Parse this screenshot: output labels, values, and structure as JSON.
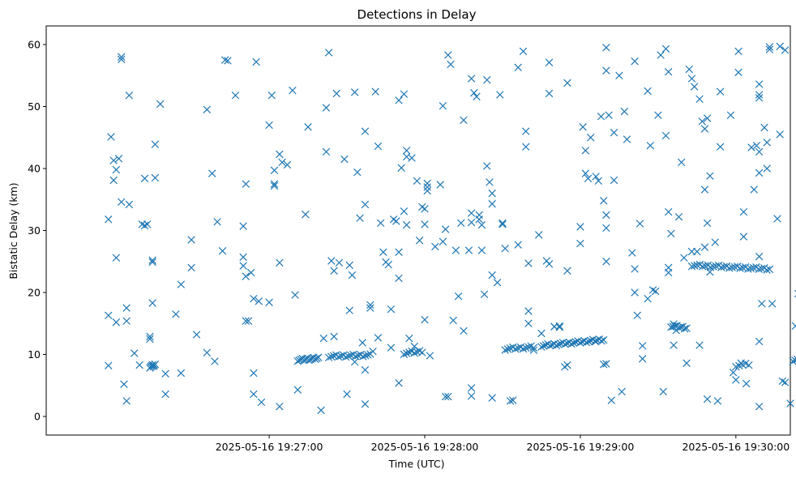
{
  "chart_data": {
    "type": "scatter",
    "title": "Detections in Delay",
    "xlabel": "Time (UTC)",
    "ylabel": "Bistatic Delay (km)",
    "x_unit": "seconds since 2025-05-16 19:26:00 UTC",
    "xlim": [
      -26,
      261
    ],
    "ylim": [
      -3,
      63
    ],
    "x_ticks": [
      {
        "value": 60,
        "label": "2025-05-16 19:27:00"
      },
      {
        "value": 120,
        "label": "2025-05-16 19:28:00"
      },
      {
        "value": 180,
        "label": "2025-05-16 19:29:00"
      },
      {
        "value": 240,
        "label": "2025-05-16 19:30:00"
      },
      {
        "value": 300,
        "label": "2025-05-16 19:31:00"
      }
    ],
    "y_ticks": [
      {
        "value": 0,
        "label": "0"
      },
      {
        "value": 10,
        "label": "10"
      },
      {
        "value": 20,
        "label": "20"
      },
      {
        "value": 30,
        "label": "30"
      },
      {
        "value": 40,
        "label": "40"
      },
      {
        "value": 50,
        "label": "50"
      },
      {
        "value": 60,
        "label": "60"
      }
    ],
    "marker": "x",
    "color": "#1f77b4",
    "tracks": [
      {
        "name": "track-1",
        "x_start": 14,
        "x_end": 16,
        "y_start": 8.0,
        "y_end": 8.3,
        "count": 7
      },
      {
        "name": "track-2",
        "x_start": 71,
        "x_end": 79,
        "y_start": 9.1,
        "y_end": 9.4,
        "count": 14
      },
      {
        "name": "track-3",
        "x_start": 83,
        "x_end": 99,
        "y_start": 9.7,
        "y_end": 9.9,
        "count": 18
      },
      {
        "name": "track-4",
        "x_start": 112,
        "x_end": 119,
        "y_start": 10.2,
        "y_end": 10.5,
        "count": 8
      },
      {
        "name": "track-5",
        "x_start": 151,
        "x_end": 162,
        "y_start": 10.9,
        "y_end": 11.2,
        "count": 12
      },
      {
        "name": "track-6",
        "x_start": 165,
        "x_end": 189,
        "y_start": 11.4,
        "y_end": 12.4,
        "count": 30
      },
      {
        "name": "track-7",
        "x_start": 215,
        "x_end": 221,
        "y_start": 14.6,
        "y_end": 14.3,
        "count": 9
      },
      {
        "name": "track-8",
        "x_start": 223,
        "x_end": 253,
        "y_start": 24.4,
        "y_end": 23.8,
        "count": 30
      },
      {
        "name": "track-9",
        "x_start": 240,
        "x_end": 245,
        "y_start": 8.2,
        "y_end": 8.4,
        "count": 5
      },
      {
        "name": "track-10",
        "x_start": 262,
        "x_end": 312,
        "y_start": 9.1,
        "y_end": 10.4,
        "count": 60
      },
      {
        "name": "track-11",
        "x_start": 315,
        "x_end": 325,
        "y_start": 10.4,
        "y_end": 10.9,
        "count": 12
      },
      {
        "name": "track-12",
        "x_start": 326,
        "x_end": 374,
        "y_start": 11.0,
        "y_end": 12.1,
        "count": 60
      }
    ],
    "points": [
      [
        -2,
        16.3
      ],
      [
        -2,
        31.8
      ],
      [
        -2,
        8.2
      ],
      [
        -1,
        45.1
      ],
      [
        0,
        41.3
      ],
      [
        0,
        38.1
      ],
      [
        1,
        39.8
      ],
      [
        1,
        25.6
      ],
      [
        2,
        41.6
      ],
      [
        1,
        15.2
      ],
      [
        3,
        58.0
      ],
      [
        3,
        57.6
      ],
      [
        3,
        34.6
      ],
      [
        4,
        5.2
      ],
      [
        5,
        17.5
      ],
      [
        5,
        15.4
      ],
      [
        5,
        2.5
      ],
      [
        6,
        51.8
      ],
      [
        6,
        34.2
      ],
      [
        8,
        10.2
      ],
      [
        10,
        8.3
      ],
      [
        11,
        31.0
      ],
      [
        12,
        38.4
      ],
      [
        12,
        30.8
      ],
      [
        13,
        31.0
      ],
      [
        14,
        12.9
      ],
      [
        14,
        12.5
      ],
      [
        15,
        18.3
      ],
      [
        15,
        25.2
      ],
      [
        15,
        24.9
      ],
      [
        16,
        43.9
      ],
      [
        16,
        38.5
      ],
      [
        18,
        50.4
      ],
      [
        20,
        6.9
      ],
      [
        20,
        3.6
      ],
      [
        24,
        16.5
      ],
      [
        26,
        21.3
      ],
      [
        26,
        7.0
      ],
      [
        30,
        28.5
      ],
      [
        30,
        24.0
      ],
      [
        32,
        13.2
      ],
      [
        36,
        49.5
      ],
      [
        36,
        10.3
      ],
      [
        38,
        39.2
      ],
      [
        39,
        8.9
      ],
      [
        40,
        31.4
      ],
      [
        42,
        26.7
      ],
      [
        43,
        57.5
      ],
      [
        44,
        57.4
      ],
      [
        47,
        51.8
      ],
      [
        50,
        30.7
      ],
      [
        50,
        25.7
      ],
      [
        50,
        24.3
      ],
      [
        51,
        37.5
      ],
      [
        51,
        22.6
      ],
      [
        51,
        15.4
      ],
      [
        52,
        15.4
      ],
      [
        53,
        23.2
      ],
      [
        54,
        19.0
      ],
      [
        54,
        7.0
      ],
      [
        54,
        3.6
      ],
      [
        55,
        57.2
      ],
      [
        56,
        18.6
      ],
      [
        57,
        2.3
      ],
      [
        60,
        47.0
      ],
      [
        60,
        18.4
      ],
      [
        61,
        51.8
      ],
      [
        62,
        39.7
      ],
      [
        62,
        37.5
      ],
      [
        62,
        37.2
      ],
      [
        64,
        42.3
      ],
      [
        64,
        24.8
      ],
      [
        64,
        1.6
      ],
      [
        65,
        41.0
      ],
      [
        67,
        40.6
      ],
      [
        69,
        52.6
      ],
      [
        70,
        19.6
      ],
      [
        71,
        4.3
      ],
      [
        74,
        32.6
      ],
      [
        75,
        46.7
      ],
      [
        80,
        1.0
      ],
      [
        81,
        12.6
      ],
      [
        82,
        42.7
      ],
      [
        82,
        49.8
      ],
      [
        83,
        58.7
      ],
      [
        84,
        25.1
      ],
      [
        85,
        12.9
      ],
      [
        85,
        23.5
      ],
      [
        86,
        52.1
      ],
      [
        87,
        24.8
      ],
      [
        89,
        41.5
      ],
      [
        90,
        3.6
      ],
      [
        91,
        24.4
      ],
      [
        91,
        17.1
      ],
      [
        92,
        22.8
      ],
      [
        93,
        52.3
      ],
      [
        93,
        8.8
      ],
      [
        94,
        39.4
      ],
      [
        95,
        32.0
      ],
      [
        96,
        11.9
      ],
      [
        97,
        46.0
      ],
      [
        97,
        34.2
      ],
      [
        97,
        7.5
      ],
      [
        97,
        2.0
      ],
      [
        99,
        18.0
      ],
      [
        99,
        17.5
      ],
      [
        100,
        10.5
      ],
      [
        101,
        52.4
      ],
      [
        102,
        43.6
      ],
      [
        102,
        12.7
      ],
      [
        103,
        31.2
      ],
      [
        104,
        26.5
      ],
      [
        105,
        24.9
      ],
      [
        106,
        24.5
      ],
      [
        107,
        17.3
      ],
      [
        107,
        11.1
      ],
      [
        108,
        31.8
      ],
      [
        109,
        31.5
      ],
      [
        110,
        22.3
      ],
      [
        110,
        26.5
      ],
      [
        110,
        5.4
      ],
      [
        110,
        51.0
      ],
      [
        111,
        40.1
      ],
      [
        112,
        52.0
      ],
      [
        112,
        33.1
      ],
      [
        113,
        42.9
      ],
      [
        113,
        41.9
      ],
      [
        113,
        30.9
      ],
      [
        114,
        12.6
      ],
      [
        115,
        41.7
      ],
      [
        116,
        11.3
      ],
      [
        117,
        38.0
      ],
      [
        118,
        28.4
      ],
      [
        119,
        33.8
      ],
      [
        120,
        33.5
      ],
      [
        120,
        31.0
      ],
      [
        120,
        15.6
      ],
      [
        121,
        37.6
      ],
      [
        121,
        37.0
      ],
      [
        121,
        36.4
      ],
      [
        122,
        9.8
      ],
      [
        124,
        27.4
      ],
      [
        126,
        37.4
      ],
      [
        127,
        50.1
      ],
      [
        127,
        28.2
      ],
      [
        128,
        30.2
      ],
      [
        128,
        3.2
      ],
      [
        129,
        3.2
      ],
      [
        129,
        58.3
      ],
      [
        130,
        56.8
      ],
      [
        131,
        15.5
      ],
      [
        132,
        26.8
      ],
      [
        133,
        19.4
      ],
      [
        134,
        31.2
      ],
      [
        135,
        47.8
      ],
      [
        135,
        13.8
      ],
      [
        137,
        26.8
      ],
      [
        138,
        54.5
      ],
      [
        138,
        32.8
      ],
      [
        138,
        31.3
      ],
      [
        138,
        4.6
      ],
      [
        138,
        3.3
      ],
      [
        139,
        52.2
      ],
      [
        140,
        51.6
      ],
      [
        141,
        32.5
      ],
      [
        141,
        31.8
      ],
      [
        142,
        26.8
      ],
      [
        142,
        30.9
      ],
      [
        143,
        19.7
      ],
      [
        144,
        54.3
      ],
      [
        144,
        40.4
      ],
      [
        145,
        37.8
      ],
      [
        146,
        34.3
      ],
      [
        146,
        36.0
      ],
      [
        146,
        22.8
      ],
      [
        146,
        3.0
      ],
      [
        148,
        21.6
      ],
      [
        149,
        51.9
      ],
      [
        150,
        31.2
      ],
      [
        150,
        31.0
      ],
      [
        151,
        27.1
      ],
      [
        153,
        2.5
      ],
      [
        154,
        2.6
      ],
      [
        156,
        27.7
      ],
      [
        156,
        56.3
      ],
      [
        158,
        58.9
      ],
      [
        159,
        46.0
      ],
      [
        159,
        43.5
      ],
      [
        160,
        24.7
      ],
      [
        160,
        17.0
      ],
      [
        160,
        15.0
      ],
      [
        162,
        10.7
      ],
      [
        164,
        29.3
      ],
      [
        165,
        13.4
      ],
      [
        167,
        25.1
      ],
      [
        168,
        57.1
      ],
      [
        168,
        52.1
      ],
      [
        168,
        24.6
      ],
      [
        170,
        14.5
      ],
      [
        170,
        14.5
      ],
      [
        172,
        14.6
      ],
      [
        172,
        14.4
      ],
      [
        175,
        53.8
      ],
      [
        175,
        23.5
      ],
      [
        174,
        8.0
      ],
      [
        175,
        8.3
      ],
      [
        180,
        30.6
      ],
      [
        180,
        27.9
      ],
      [
        181,
        46.7
      ],
      [
        182,
        42.9
      ],
      [
        182,
        39.2
      ],
      [
        183,
        38.4
      ],
      [
        184,
        45.0
      ],
      [
        186,
        38.7
      ],
      [
        186,
        12.1
      ],
      [
        187,
        38.0
      ],
      [
        188,
        48.4
      ],
      [
        189,
        8.4
      ],
      [
        189,
        34.8
      ],
      [
        190,
        32.5
      ],
      [
        190,
        30.4
      ],
      [
        190,
        25.0
      ],
      [
        190,
        59.5
      ],
      [
        190,
        55.8
      ],
      [
        190,
        8.5
      ],
      [
        191,
        48.6
      ],
      [
        192,
        2.6
      ],
      [
        193,
        45.8
      ],
      [
        193,
        38.1
      ],
      [
        195,
        55.0
      ],
      [
        196,
        4.0
      ],
      [
        197,
        49.2
      ],
      [
        198,
        44.7
      ],
      [
        200,
        26.4
      ],
      [
        201,
        23.8
      ],
      [
        201,
        20.0
      ],
      [
        201,
        57.3
      ],
      [
        202,
        16.3
      ],
      [
        203,
        31.1
      ],
      [
        204,
        11.4
      ],
      [
        204,
        9.3
      ],
      [
        206,
        52.5
      ],
      [
        206,
        19.0
      ],
      [
        207,
        43.7
      ],
      [
        208,
        20.4
      ],
      [
        209,
        20.2
      ],
      [
        210,
        48.6
      ],
      [
        211,
        58.3
      ],
      [
        212,
        4.0
      ],
      [
        213,
        45.3
      ],
      [
        213,
        59.3
      ],
      [
        214,
        55.6
      ],
      [
        214,
        33.0
      ],
      [
        214,
        24.0
      ],
      [
        214,
        23.2
      ],
      [
        215,
        29.5
      ],
      [
        216,
        11.5
      ],
      [
        216,
        14.9
      ],
      [
        217,
        13.9
      ],
      [
        218,
        32.2
      ],
      [
        219,
        41.0
      ],
      [
        220,
        25.6
      ],
      [
        221,
        8.6
      ],
      [
        222,
        56.0
      ],
      [
        223,
        54.5
      ],
      [
        223,
        26.6
      ],
      [
        224,
        53.2
      ],
      [
        225,
        26.6
      ],
      [
        226,
        51.2
      ],
      [
        226,
        11.5
      ],
      [
        227,
        47.6
      ],
      [
        228,
        36.6
      ],
      [
        228,
        46.4
      ],
      [
        228,
        27.3
      ],
      [
        229,
        48.1
      ],
      [
        229,
        31.2
      ],
      [
        229,
        2.8
      ],
      [
        230,
        23.3
      ],
      [
        230,
        38.8
      ],
      [
        232,
        28.1
      ],
      [
        233,
        2.5
      ],
      [
        234,
        43.5
      ],
      [
        234,
        52.4
      ],
      [
        238,
        48.6
      ],
      [
        239,
        7.1
      ],
      [
        240,
        5.9
      ],
      [
        241,
        55.5
      ],
      [
        241,
        58.9
      ],
      [
        242,
        8.6
      ],
      [
        243,
        33.0
      ],
      [
        243,
        29.0
      ],
      [
        244,
        5.3
      ],
      [
        246,
        43.4
      ],
      [
        247,
        36.6
      ],
      [
        248,
        43.7
      ],
      [
        249,
        53.6
      ],
      [
        249,
        51.9
      ],
      [
        249,
        51.4
      ],
      [
        249,
        42.7
      ],
      [
        249,
        39.3
      ],
      [
        249,
        25.8
      ],
      [
        249,
        12.1
      ],
      [
        249,
        1.6
      ],
      [
        250,
        18.2
      ],
      [
        251,
        46.6
      ],
      [
        252,
        44.2
      ],
      [
        252,
        40.0
      ],
      [
        253,
        59.2
      ],
      [
        253,
        59.6
      ],
      [
        254,
        18.2
      ],
      [
        256,
        31.9
      ],
      [
        257,
        59.7
      ],
      [
        257,
        45.5
      ],
      [
        258,
        5.7
      ],
      [
        259,
        59.1
      ],
      [
        259,
        5.5
      ],
      [
        261,
        2.1
      ],
      [
        263,
        14.6
      ],
      [
        264,
        19.8
      ],
      [
        265,
        14.0
      ],
      [
        266,
        19.5
      ],
      [
        267,
        18.9
      ],
      [
        267,
        17.4
      ],
      [
        267,
        15.9
      ],
      [
        268,
        14.8
      ],
      [
        269,
        50.8
      ],
      [
        270,
        34.6
      ],
      [
        271,
        33.2
      ],
      [
        273,
        0.9
      ],
      [
        274,
        12.8
      ],
      [
        274,
        10.5
      ],
      [
        275,
        50.3
      ],
      [
        275,
        26.5
      ],
      [
        276,
        38.5
      ],
      [
        276,
        31.1
      ],
      [
        276,
        53.2
      ],
      [
        277,
        44.5
      ],
      [
        277,
        35.7
      ],
      [
        278,
        58.1
      ],
      [
        278,
        57.4
      ],
      [
        278,
        55.9
      ],
      [
        279,
        13.8
      ],
      [
        279,
        35.2
      ],
      [
        280,
        26.3
      ],
      [
        280,
        26.1
      ],
      [
        280,
        24.5
      ],
      [
        281,
        26.4
      ],
      [
        282,
        26.2
      ]
    ]
  }
}
